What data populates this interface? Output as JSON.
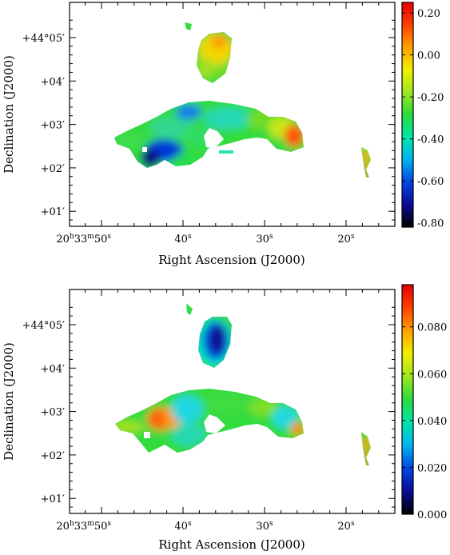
{
  "colors": {
    "ramp": [
      "#000000",
      "#0a0a96",
      "#0046e6",
      "#00b4f0",
      "#00e6aa",
      "#28dc3c",
      "#a0e61e",
      "#f0f000",
      "#ffa000",
      "#ff4000",
      "#e60000"
    ]
  },
  "chart_data": [
    {
      "type": "heatmap",
      "title": "",
      "xlabel": "Right Ascension (J2000)",
      "ylabel": "Declination (J2000)",
      "xaxis": {
        "direction": "decreasing",
        "ticks": [
          {
            "label_main": "20",
            "h": "h",
            "m_val": "33",
            "m": "m",
            "s_val": "50",
            "s": "s",
            "value": 50
          },
          {
            "label_main": "40",
            "s": "s",
            "value": 40
          },
          {
            "label_main": "30",
            "s": "s",
            "value": 30
          },
          {
            "label_main": "20",
            "s": "s",
            "value": 20
          }
        ]
      },
      "yaxis": {
        "ticks": [
          {
            "label": "+01′",
            "value": 1
          },
          {
            "label": "+02′",
            "value": 2
          },
          {
            "label": "+03′",
            "value": 3
          },
          {
            "label": "+04′",
            "value": 4
          },
          {
            "label": "+44°05′",
            "value": 5
          }
        ]
      },
      "colorbar": {
        "min": -0.82,
        "max": 0.25,
        "ticks": [
          "0.20",
          "0.00",
          "-0.20",
          "-0.40",
          "-0.60",
          "-0.80"
        ],
        "tick_values": [
          0.2,
          0.0,
          -0.2,
          -0.4,
          -0.6,
          -0.8
        ]
      }
    },
    {
      "type": "heatmap",
      "title": "",
      "xlabel": "Right Ascension (J2000)",
      "ylabel": "Declination (J2000)",
      "xaxis": {
        "direction": "decreasing",
        "ticks": [
          {
            "label_main": "20",
            "h": "h",
            "m_val": "33",
            "m": "m",
            "s_val": "50",
            "s": "s",
            "value": 50
          },
          {
            "label_main": "40",
            "s": "s",
            "value": 40
          },
          {
            "label_main": "30",
            "s": "s",
            "value": 30
          },
          {
            "label_main": "20",
            "s": "s",
            "value": 20
          }
        ]
      },
      "yaxis": {
        "ticks": [
          {
            "label": "+01′",
            "value": 1
          },
          {
            "label": "+02′",
            "value": 2
          },
          {
            "label": "+03′",
            "value": 3
          },
          {
            "label": "+04′",
            "value": 4
          },
          {
            "label": "+44°05′",
            "value": 5
          }
        ]
      },
      "colorbar": {
        "min": 0.0,
        "max": 0.098,
        "ticks": [
          "0.080",
          "0.060",
          "0.040",
          "0.020",
          "0.000"
        ],
        "tick_values": [
          0.08,
          0.06,
          0.04,
          0.02,
          0.0
        ]
      }
    }
  ]
}
